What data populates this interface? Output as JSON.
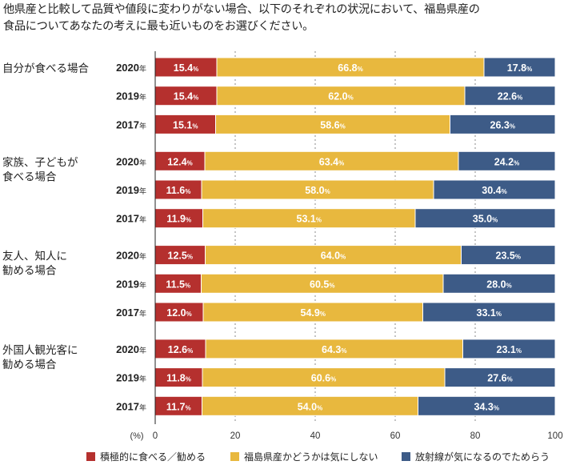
{
  "title_lines": [
    "他県産と比較して品質や値段に変わりがない場合、以下のそれぞれの状況において、福島県産の",
    "食品についてあなたの考えに最も近いものをお選びください。"
  ],
  "chart_data": {
    "type": "bar",
    "orientation": "horizontal-stacked-100",
    "unit_label": "(%)",
    "year_suffix": "年",
    "value_suffix": "%",
    "xlim": [
      0,
      100
    ],
    "x_ticks": [
      "0",
      "20",
      "40",
      "60",
      "80",
      "100"
    ],
    "grid": true,
    "legend_position": "bottom",
    "series": [
      {
        "name": "積極的に食べる／勧める",
        "color": "#b5302e"
      },
      {
        "name": "福島県産かどうかは気にしない",
        "color": "#e8b83e"
      },
      {
        "name": "放射線が気になるのでためらう",
        "color": "#3d5b87"
      }
    ],
    "groups": [
      {
        "label": [
          "自分が食べる場合"
        ],
        "rows": [
          {
            "year": "2020",
            "values": [
              15.4,
              66.8,
              17.8
            ]
          },
          {
            "year": "2019",
            "values": [
              15.4,
              62.0,
              22.6
            ]
          },
          {
            "year": "2017",
            "values": [
              15.1,
              58.6,
              26.3
            ]
          }
        ]
      },
      {
        "label": [
          "家族、子どもが",
          "食べる場合"
        ],
        "rows": [
          {
            "year": "2020",
            "values": [
              12.4,
              63.4,
              24.2
            ]
          },
          {
            "year": "2019",
            "values": [
              11.6,
              58.0,
              30.4
            ]
          },
          {
            "year": "2017",
            "values": [
              11.9,
              53.1,
              35.0
            ]
          }
        ]
      },
      {
        "label": [
          "友人、知人に",
          "勧める場合"
        ],
        "rows": [
          {
            "year": "2020",
            "values": [
              12.5,
              64.0,
              23.5
            ]
          },
          {
            "year": "2019",
            "values": [
              11.5,
              60.5,
              28.0
            ]
          },
          {
            "year": "2017",
            "values": [
              12.0,
              54.9,
              33.1
            ]
          }
        ]
      },
      {
        "label": [
          "外国人観光客に",
          "勧める場合"
        ],
        "rows": [
          {
            "year": "2020",
            "values": [
              12.6,
              64.3,
              23.1
            ]
          },
          {
            "year": "2019",
            "values": [
              11.8,
              60.6,
              27.6
            ]
          },
          {
            "year": "2017",
            "values": [
              11.7,
              54.0,
              34.3
            ]
          }
        ]
      }
    ]
  }
}
